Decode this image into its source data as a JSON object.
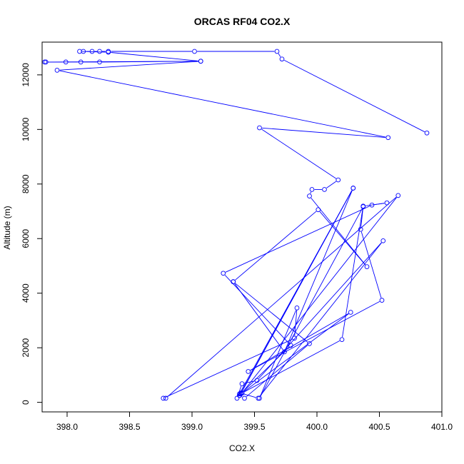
{
  "chart_data": {
    "type": "line",
    "title": "ORCAS RF04 CO2.X",
    "xlabel": "CO2.X",
    "ylabel": "Altitude (m)",
    "xlim": [
      397.8,
      401.0
    ],
    "ylim": [
      -350,
      13200
    ],
    "x_ticks": [
      398.0,
      398.5,
      399.0,
      399.5,
      400.0,
      400.5,
      401.0
    ],
    "x_tick_labels": [
      "398.0",
      "398.5",
      "399.0",
      "399.5",
      "400.0",
      "400.5",
      "401.0"
    ],
    "y_ticks": [
      0,
      2000,
      4000,
      6000,
      8000,
      10000,
      12000
    ],
    "y_tick_labels": [
      "0",
      "2000",
      "4000",
      "6000",
      "8000",
      "10000",
      "12000"
    ],
    "grid": false,
    "color": "#0000ff",
    "series": [
      {
        "name": "",
        "points": [
          [
            400.88,
            9870
          ],
          [
            399.72,
            12580
          ],
          [
            399.68,
            12860
          ],
          [
            399.02,
            12860
          ],
          [
            398.33,
            12860
          ],
          [
            398.26,
            12860
          ],
          [
            398.2,
            12860
          ],
          [
            398.13,
            12860
          ],
          [
            398.1,
            12860
          ],
          [
            398.33,
            12830
          ],
          [
            399.07,
            12500
          ],
          [
            398.26,
            12470
          ],
          [
            398.11,
            12470
          ],
          [
            397.99,
            12470
          ],
          [
            397.82,
            12470
          ],
          [
            397.83,
            12470
          ],
          [
            399.07,
            12500
          ],
          [
            397.92,
            12170
          ],
          [
            400.57,
            9700
          ],
          [
            399.54,
            10060
          ],
          [
            400.17,
            8150
          ],
          [
            400.06,
            7800
          ],
          [
            399.96,
            7800
          ],
          [
            399.94,
            7560
          ],
          [
            400.4,
            4970
          ],
          [
            400.01,
            7060
          ],
          [
            399.33,
            4420
          ],
          [
            399.94,
            2150
          ],
          [
            399.42,
            150
          ],
          [
            399.38,
            250
          ],
          [
            399.38,
            310
          ],
          [
            399.39,
            340
          ],
          [
            399.53,
            150
          ],
          [
            400.53,
            5920
          ],
          [
            399.52,
            800
          ],
          [
            399.4,
            680
          ],
          [
            399.36,
            150
          ],
          [
            400.29,
            7850
          ],
          [
            399.38,
            250
          ],
          [
            399.39,
            310
          ],
          [
            399.4,
            340
          ],
          [
            400.65,
            7580
          ],
          [
            398.79,
            150
          ],
          [
            398.77,
            150
          ],
          [
            399.82,
            2350
          ],
          [
            399.84,
            3460
          ],
          [
            399.54,
            150
          ],
          [
            400.37,
            7170
          ],
          [
            400.35,
            6340
          ],
          [
            400.52,
            3740
          ],
          [
            399.45,
            1130
          ],
          [
            400.27,
            3300
          ],
          [
            399.4,
            340
          ],
          [
            400.2,
            2300
          ],
          [
            400.37,
            7190
          ],
          [
            400.56,
            7310
          ],
          [
            400.44,
            7230
          ],
          [
            399.25,
            4730
          ],
          [
            399.79,
            2090
          ],
          [
            399.39,
            310
          ],
          [
            400.29,
            7850
          ],
          [
            399.74,
            1850
          ],
          [
            399.33,
            4420
          ]
        ]
      }
    ]
  }
}
